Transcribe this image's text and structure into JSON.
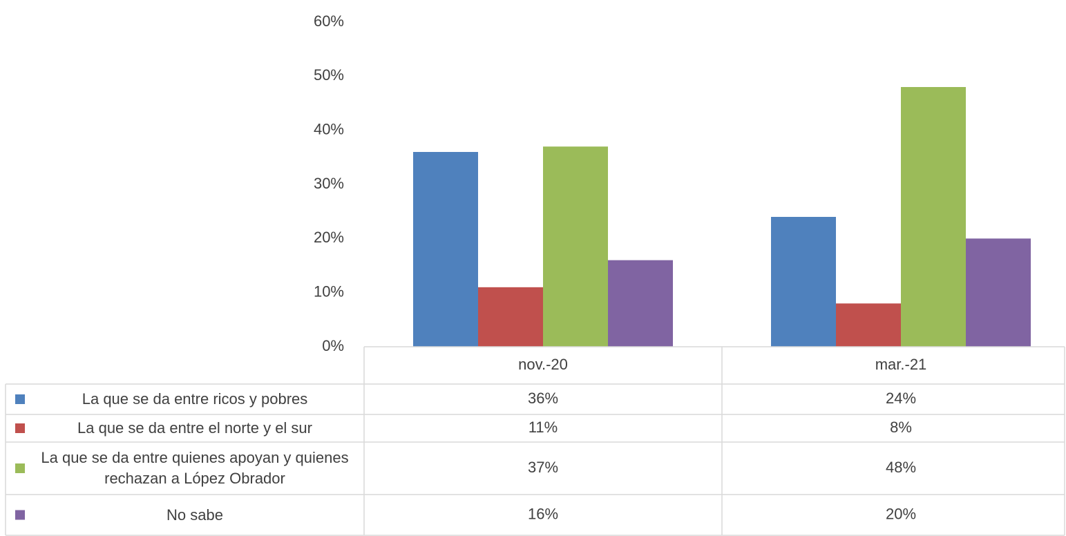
{
  "chart_data": {
    "type": "bar",
    "categories": [
      "nov.-20",
      "mar.-21"
    ],
    "series": [
      {
        "name": "La que se da entre ricos y pobres",
        "color": "#4f81bd",
        "values": [
          36,
          24
        ],
        "value_labels": [
          "36%",
          "24%"
        ]
      },
      {
        "name": "La que se da entre el norte y el sur",
        "color": "#c0504d",
        "values": [
          11,
          8
        ],
        "value_labels": [
          "11%",
          "8%"
        ]
      },
      {
        "name": "La que se da entre quienes apoyan y quienes rechazan a López Obrador",
        "color": "#9bbb59",
        "values": [
          37,
          48
        ],
        "value_labels": [
          "37%",
          "48%"
        ]
      },
      {
        "name": "No sabe",
        "color": "#8064a2",
        "values": [
          16,
          20
        ],
        "value_labels": [
          "16%",
          "20%"
        ]
      }
    ],
    "ylim": [
      0,
      60
    ],
    "yticks": [
      {
        "value": 0,
        "label": "0%"
      },
      {
        "value": 10,
        "label": "10%"
      },
      {
        "value": 20,
        "label": "20%"
      },
      {
        "value": 30,
        "label": "30%"
      },
      {
        "value": 40,
        "label": "40%"
      },
      {
        "value": 50,
        "label": "50%"
      },
      {
        "value": 60,
        "label": "60%"
      }
    ],
    "grid": false
  }
}
